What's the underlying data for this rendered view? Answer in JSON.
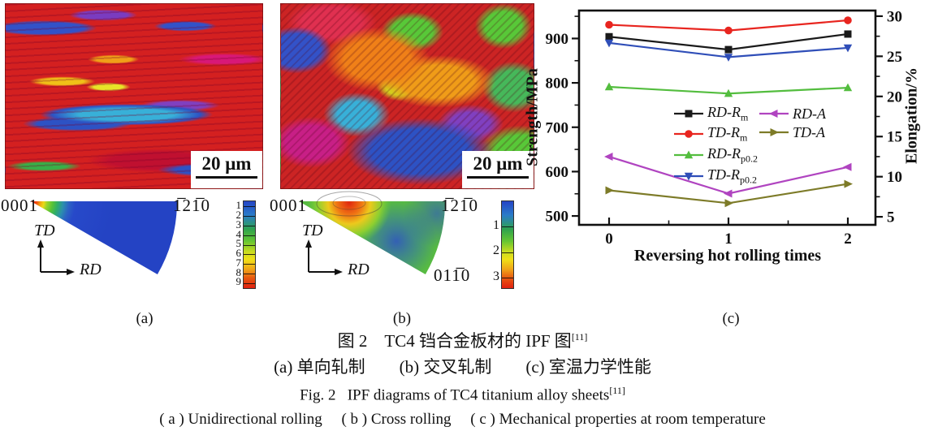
{
  "figure": {
    "panel_a": {
      "label": "(a)",
      "scale_bar": "20 μm",
      "dominant_colors": [
        "#d42020",
        "#2d52c4",
        "#38b0d8",
        "#e8e428",
        "#f0a018",
        "#d81878",
        "#38b048"
      ]
    },
    "panel_b": {
      "label": "(b)",
      "scale_bar": "20 μm",
      "dominant_colors": [
        "#cc2424",
        "#f08018",
        "#58c838",
        "#2d52c4",
        "#c81f86",
        "#c8e020"
      ]
    },
    "panel_c": {
      "label": "(c)"
    }
  },
  "pole_a": {
    "corner_top_left": "0001",
    "corner_top_right": "1̅21̅0",
    "axis_vertical": "TD",
    "axis_horizontal": "RD",
    "colorbar": [
      "1",
      "2",
      "3",
      "4",
      "5",
      "6",
      "7",
      "8",
      "9"
    ]
  },
  "pole_b": {
    "corner_top_left": "0001",
    "corner_top_right": "1̅21̅0",
    "corner_bottom_right": "011̅0",
    "axis_vertical": "TD",
    "axis_horizontal": "RD",
    "colorbar": [
      "1",
      "2",
      "3"
    ]
  },
  "chart_data": {
    "type": "line",
    "x": [
      0,
      1,
      2
    ],
    "xticks": [
      "0",
      "1",
      "2"
    ],
    "xlabel": "Reversing hot rolling times",
    "ylabel_left": "Strength/MPa",
    "ylabel_right": "Elongation/%",
    "ylim_left": [
      480,
      963
    ],
    "yticks_left": [
      500,
      600,
      700,
      800,
      900
    ],
    "ylim_right": [
      4.0,
      30.7
    ],
    "yticks_right": [
      5,
      10,
      15,
      20,
      25,
      30
    ],
    "grid": false,
    "legend_position": "center-inside",
    "series": [
      {
        "name_main": "RD-R",
        "name_sub": "m",
        "axis": "left",
        "color": "#1a1a1a",
        "marker": "square",
        "values": [
          904,
          875,
          910
        ]
      },
      {
        "name_main": "TD-R",
        "name_sub": "m",
        "axis": "left",
        "color": "#e8251f",
        "marker": "circle",
        "values": [
          931,
          918,
          941
        ]
      },
      {
        "name_main": "RD-R",
        "name_sub": "p0.2",
        "axis": "left",
        "color": "#53bd3e",
        "marker": "triangle-up",
        "values": [
          791,
          776,
          789
        ]
      },
      {
        "name_main": "TD-R",
        "name_sub": "p0.2",
        "axis": "left",
        "color": "#2f4eb8",
        "marker": "triangle-down",
        "values": [
          890,
          858,
          879
        ]
      },
      {
        "name_main": "RD-A",
        "name_sub": "",
        "axis": "right",
        "color": "#b044c0",
        "marker": "triangle-left",
        "values": [
          12.5,
          7.9,
          11.2
        ]
      },
      {
        "name_main": "TD-A",
        "name_sub": "",
        "axis": "right",
        "color": "#7d7b28",
        "marker": "triangle-right",
        "values": [
          8.3,
          6.7,
          9.1
        ]
      }
    ]
  },
  "captions": {
    "zh_title": "图 2　TC4 铛合金板材的 IPF 图",
    "zh_title_sup": "[11]",
    "zh_sub": "(a) 单向轧制　　(b) 交叉轧制　　(c) 室温力学性能",
    "en_title": "Fig. 2  IPF diagrams of TC4 titanium alloy sheets",
    "en_title_sup": "[11]",
    "en_sub": "( a )  Unidirectional rolling  ( b )  Cross rolling  ( c )  Mechanical properties at room temperature"
  }
}
